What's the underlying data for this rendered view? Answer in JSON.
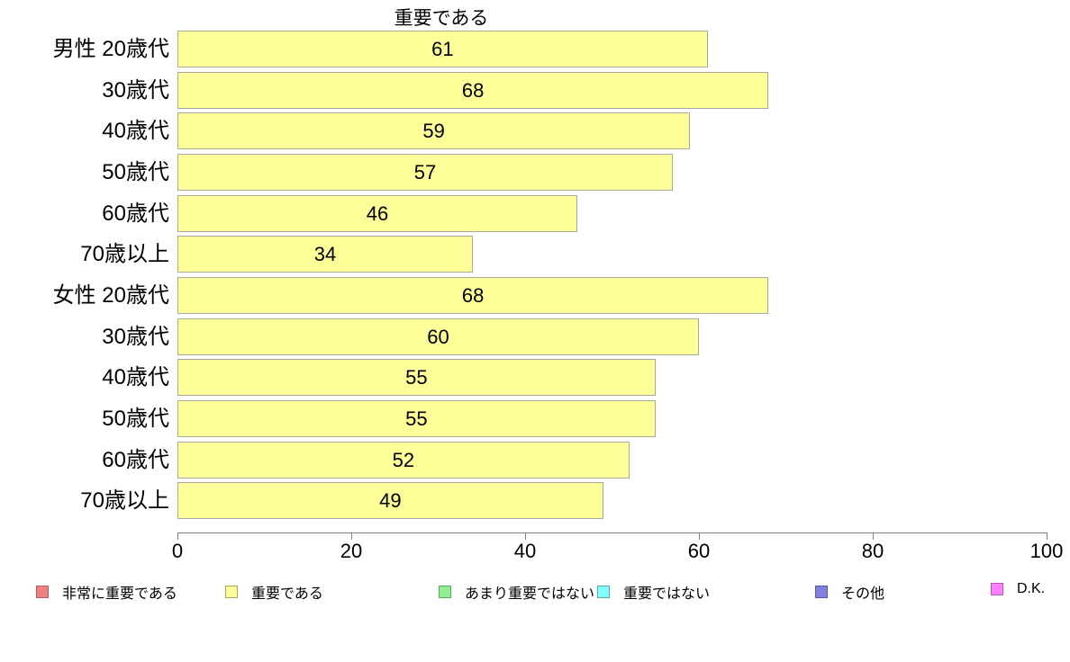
{
  "chart_data": {
    "type": "bar",
    "orientation": "horizontal",
    "title": "重要である",
    "categories": [
      "男性 20歳代",
      "30歳代",
      "40歳代",
      "50歳代",
      "60歳代",
      "70歳以上",
      "女性 20歳代",
      "30歳代",
      "40歳代",
      "50歳代",
      "60歳代",
      "70歳以上"
    ],
    "values": [
      61,
      68,
      59,
      57,
      46,
      34,
      68,
      60,
      55,
      55,
      52,
      49
    ],
    "xlim": [
      0,
      100
    ],
    "x_ticks": [
      0,
      20,
      40,
      60,
      80,
      100
    ],
    "grid": "off",
    "bar_color": "#ffff99",
    "bar_border_color": "#a8a89a",
    "axis_color": "#808080",
    "legend_position": "bottom",
    "legend": [
      {
        "label": "非常に重要である",
        "color": "#f08080",
        "border": "#a85f5f"
      },
      {
        "label": "重要である",
        "color": "#ffff99",
        "border": "#a8a860"
      },
      {
        "label": "あまり重要ではない",
        "color": "#90ee90",
        "border": "#5fa85f"
      },
      {
        "label": "重要ではない",
        "color": "#80ffff",
        "border": "#5fa8a8"
      },
      {
        "label": "その他",
        "color": "#8080e0",
        "border": "#5555a0"
      },
      {
        "label": "D.K.",
        "color": "#ff80ff",
        "border": "#a85fa8"
      }
    ]
  }
}
